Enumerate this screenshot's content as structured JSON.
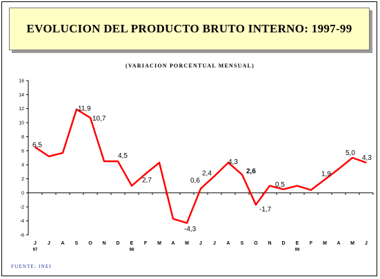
{
  "header": {
    "title": "EVOLUCION DEL PRODUCTO BRUTO INTERNO: 1997-99",
    "subtitle": "(VARIACION PORCENTUAL MENSUAL)"
  },
  "footer": {
    "source": "FUENTE: INEI"
  },
  "colors": {
    "line": "#ff0000",
    "title_bg": "#ffffc4",
    "footer_text": "#1f2f9e"
  },
  "chart_data": {
    "type": "line",
    "title": "EVOLUCION DEL PRODUCTO BRUTO INTERNO: 1997-99",
    "subtitle": "(VARIACION PORCENTUAL MENSUAL)",
    "categories": [
      "J",
      "J",
      "A",
      "S",
      "O",
      "N",
      "D",
      "E",
      "F",
      "M",
      "A",
      "M",
      "J",
      "J",
      "A",
      "S",
      "O",
      "N",
      "D",
      "E",
      "F",
      "M",
      "A",
      "M",
      "J"
    ],
    "year_labels": [
      {
        "index": 0,
        "label": "97"
      },
      {
        "index": 7,
        "label": "98"
      },
      {
        "index": 19,
        "label": "99"
      }
    ],
    "series": [
      {
        "values": [
          6.5,
          5.2,
          5.7,
          11.9,
          10.7,
          4.5,
          4.5,
          1.0,
          2.7,
          4.3,
          -3.7,
          -4.3,
          0.6,
          2.4,
          4.3,
          2.6,
          -1.7,
          1.0,
          0.5,
          1.0,
          0.4,
          1.9,
          3.4,
          5.0,
          4.3
        ],
        "color": "#ff0000"
      }
    ],
    "data_labels": [
      {
        "index": 0,
        "text": "6,5",
        "bold": false
      },
      {
        "index": 3,
        "text": "11,9",
        "bold": false
      },
      {
        "index": 4,
        "text": "10,7",
        "bold": false
      },
      {
        "index": 6,
        "text": "4,5",
        "bold": false
      },
      {
        "index": 8,
        "text": "2,7",
        "bold": false
      },
      {
        "index": 11,
        "text": "-4,3",
        "bold": false
      },
      {
        "index": 12,
        "text": "0,6",
        "bold": false
      },
      {
        "index": 13,
        "text": "2,4",
        "bold": false
      },
      {
        "index": 14,
        "text": "4,3",
        "bold": false
      },
      {
        "index": 15,
        "text": "2,6",
        "bold": true
      },
      {
        "index": 16,
        "text": "-1,7",
        "bold": false
      },
      {
        "index": 18,
        "text": "0,5",
        "bold": false
      },
      {
        "index": 21,
        "text": "1,9",
        "bold": false
      },
      {
        "index": 23,
        "text": "5,0",
        "bold": false
      },
      {
        "index": 24,
        "text": "4,3",
        "bold": false
      }
    ],
    "ylim": [
      -6,
      16
    ],
    "yticks": [
      -6,
      -4,
      -2,
      0,
      2,
      4,
      6,
      8,
      10,
      12,
      14,
      16
    ],
    "xlabel": "",
    "ylabel": "",
    "grid": false
  }
}
